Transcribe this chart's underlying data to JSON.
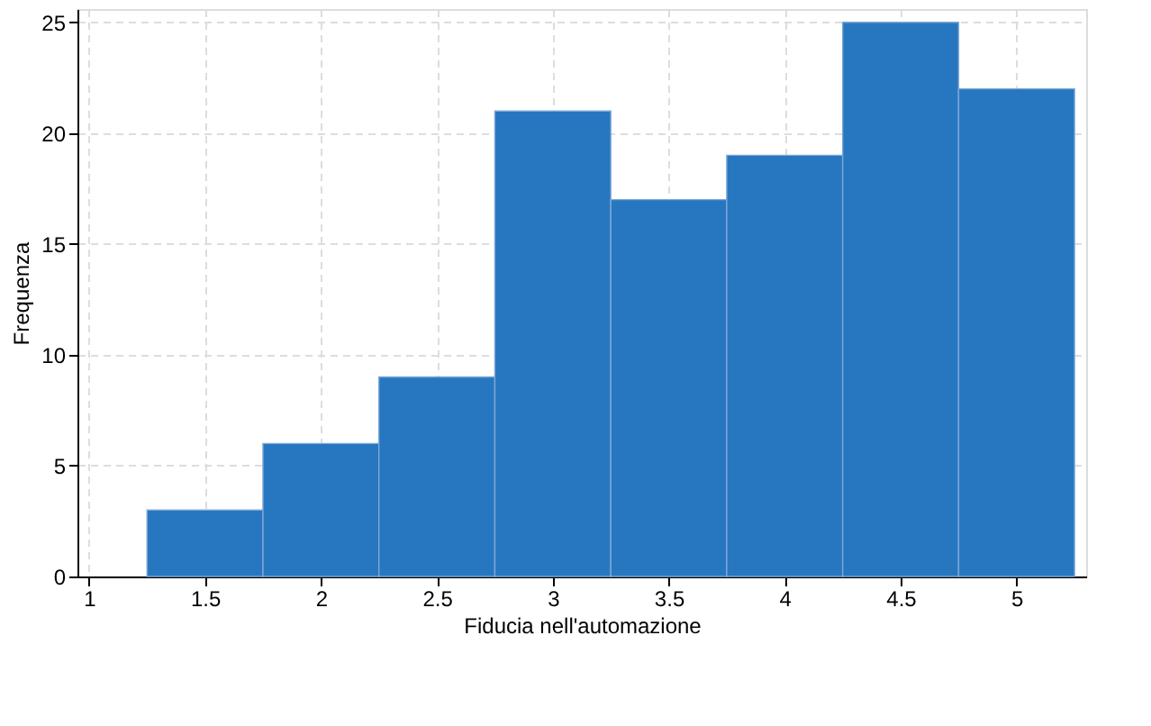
{
  "chart_data": {
    "type": "histogram",
    "xlabel": "Fiducia nell'automazione",
    "ylabel": "Frequenza",
    "bins": [
      1.25,
      1.75,
      2.25,
      2.75,
      3.25,
      3.75,
      4.25,
      4.75,
      5.25
    ],
    "values": [
      3,
      6,
      9,
      21,
      17,
      19,
      25,
      22
    ],
    "color": "#2677bf",
    "xlim": [
      0.95,
      5.3
    ],
    "xticks": [
      1,
      1.5,
      2,
      2.5,
      3,
      3.5,
      4,
      4.5,
      5
    ],
    "ylim": [
      0,
      25.6
    ],
    "yticks": [
      0,
      5,
      10,
      15,
      20,
      25
    ],
    "grid": true
  }
}
